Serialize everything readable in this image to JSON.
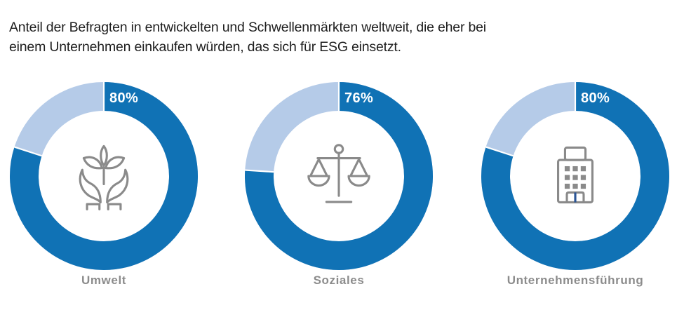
{
  "title": {
    "line1": "Anteil der Befragten in entwickelten und Schwellenmärkten weltweit, die eher bei",
    "line2": "einem Unternehmen einkaufen würden, das sich für ESG einsetzt."
  },
  "colors": {
    "primary_blue": "#1072B5",
    "light_blue": "#B5CBE8",
    "label_gray": "#8C8C8C",
    "icon_gray": "#8A8A8A",
    "door_divider_blue": "#2B5596",
    "title_text": "#1E1E1E",
    "percent_text": "#FFFFFF",
    "background": "#FFFFFF"
  },
  "chart_data": {
    "type": "pie",
    "subtype": "donut",
    "title": "Anteil der Befragten in entwickelten und Schwellenmärkten weltweit, die eher bei einem Unternehmen einkaufen würden, das sich für ESG einsetzt.",
    "categories": [
      "Umwelt",
      "Soziales",
      "Unternehmensführung"
    ],
    "values": [
      80,
      76,
      80
    ],
    "value_labels": [
      "80%",
      "76%",
      "80%"
    ],
    "unit": "%",
    "value_range": [
      0,
      100
    ],
    "icons": [
      "hands-holding-plant-icon",
      "balance-scale-icon",
      "office-building-icon"
    ],
    "colors": {
      "filled": "#1072B5",
      "remainder": "#B5CBE8",
      "separator": "#FFFFFF"
    },
    "legend": "none",
    "grid": false,
    "label_position": "inside-top-right-of-ring"
  }
}
